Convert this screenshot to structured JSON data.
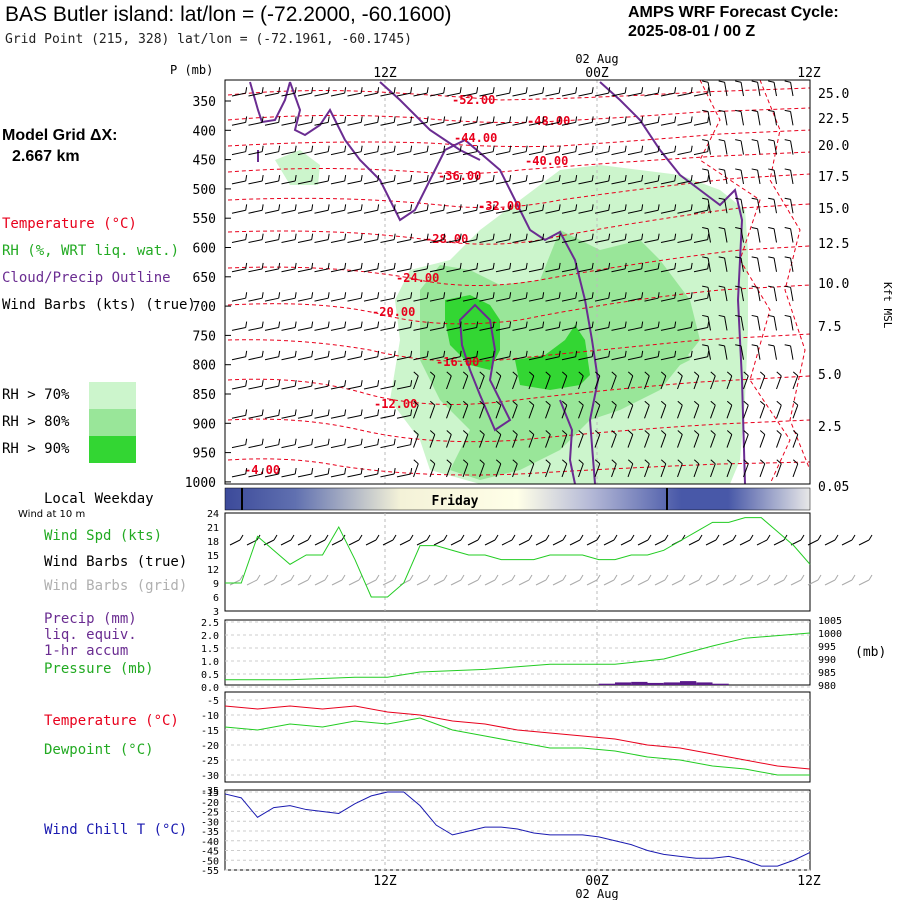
{
  "header": {
    "title": "BAS Butler island:  lat/lon = (-72.2000, -60.1600)",
    "grid_point": "Grid Point (215, 328) lat/lon = (-72.1961, -60.1745)",
    "cycle_label": "AMPS WRF Forecast Cycle:",
    "cycle_value": "2025-08-01 / 00  Z"
  },
  "sidebar": {
    "model_grid_label": "Model Grid ΔX:",
    "model_grid_value": "2.667 km",
    "legend_temperature": "Temperature (°C)",
    "legend_rh": "RH (%, WRT liq. wat.)",
    "legend_cloud": "Cloud/Precip Outline",
    "legend_wind": "Wind Barbs (kts) (true)",
    "rh_levels": [
      "RH > 70%",
      "RH > 80%",
      "RH > 90%"
    ],
    "local_weekday": "Local Weekday",
    "wind_at": "Wind at 10 m",
    "wind_spd": "Wind Spd (kts)",
    "wind_barbs_true": "Wind Barbs (true)",
    "wind_barbs_grid": "Wind Barbs (grid)",
    "precip_1": "Precip (mm)",
    "precip_2": "liq. equiv.",
    "precip_3": "1-hr accum",
    "pressure": "Pressure (mb)",
    "temperature": "Temperature (°C)",
    "dewpoint": "Dewpoint (°C)",
    "wind_chill": "Wind Chill T (°C)"
  },
  "colors": {
    "temperature": "#e8001c",
    "rh": "#22cc22",
    "cloud": "#6a2c91",
    "wind_chill": "#1a1ab0",
    "rh70": "#ccf5cc",
    "rh80": "#99e699",
    "rh90": "#33d633",
    "precip": "#5a1a8a"
  },
  "chart_data": [
    {
      "type": "heatmap",
      "name": "vertical-profile",
      "ylabel": "P (mb)",
      "y_ticks": [
        "350",
        "400",
        "450",
        "500",
        "550",
        "600",
        "650",
        "700",
        "750",
        "800",
        "850",
        "900",
        "950",
        "1000"
      ],
      "y2_label": "Kft MSL",
      "y2_ticks": [
        "25.0",
        "22.5",
        "20.0",
        "17.5",
        "15.0",
        "12.5",
        "10.0",
        "7.5",
        "5.0",
        "2.5",
        "0.05"
      ],
      "x_ticks_top": [
        "12Z",
        "00Z",
        "12Z"
      ],
      "date_label": "02 Aug",
      "temperature_labels": [
        "-52.00",
        "-48.00",
        "-44.00",
        "-40.00",
        "-36.00",
        "-32.00",
        "-28.00",
        "-24.00",
        "-20.00",
        "-16.00",
        "-12.00",
        "-4.00"
      ]
    },
    {
      "type": "line",
      "name": "wind-speed",
      "ylim": [
        3,
        24
      ],
      "y_ticks": [
        "24",
        "21",
        "18",
        "15",
        "12",
        "9",
        "6",
        "3"
      ],
      "x": [
        0,
        1,
        2,
        3,
        4,
        5,
        6,
        7,
        8,
        9,
        10,
        11,
        12,
        13,
        14,
        15,
        16,
        17,
        18,
        19,
        20,
        21,
        22,
        23,
        24,
        25,
        26,
        27,
        28,
        29,
        30,
        31,
        32,
        33,
        34,
        35,
        36
      ],
      "values": [
        9,
        9,
        19,
        16,
        13,
        15,
        15,
        21,
        14,
        6,
        6,
        9,
        17,
        17,
        16,
        15,
        15,
        14,
        14,
        14,
        15,
        15,
        15,
        14,
        14,
        15,
        15,
        16,
        18,
        20,
        22,
        22,
        23,
        23,
        20,
        17,
        13
      ]
    },
    {
      "type": "bar",
      "name": "precip-pressure",
      "ylim": [
        0,
        2.5
      ],
      "y_ticks": [
        "2.5",
        "2.0",
        "1.5",
        "1.0",
        "0.5",
        "0.0"
      ],
      "y2_ticks": [
        "1005",
        "1000",
        "995",
        "990",
        "985",
        "980"
      ],
      "y2_label": "(mb)",
      "y2lim": [
        980,
        1005
      ],
      "precip_x": [
        23,
        24,
        25,
        26,
        27,
        28,
        29,
        30
      ],
      "precip_values": [
        0.05,
        0.1,
        0.12,
        0.08,
        0.1,
        0.15,
        0.1,
        0.05
      ],
      "pressure_x": [
        0,
        4,
        8,
        10,
        12,
        16,
        18,
        20,
        24,
        27,
        30,
        32,
        34,
        36
      ],
      "pressure_values": [
        982,
        982,
        983,
        983,
        985,
        986,
        987,
        988,
        988,
        990,
        995,
        998,
        999,
        1000
      ]
    },
    {
      "type": "line",
      "name": "temperature-dewpoint",
      "ylim": [
        -35,
        -5
      ],
      "y_ticks": [
        "-5",
        "-10",
        "-15",
        "-20",
        "-25",
        "-30",
        "-35"
      ],
      "x": [
        0,
        2,
        4,
        6,
        8,
        10,
        12,
        14,
        16,
        18,
        20,
        22,
        24,
        26,
        28,
        30,
        32,
        34,
        36
      ],
      "series": [
        {
          "name": "Temperature (°C)",
          "values": [
            -7,
            -8,
            -7,
            -8,
            -7,
            -9,
            -10,
            -12,
            -13,
            -15,
            -16,
            -17,
            -18,
            -20,
            -21,
            -23,
            -25,
            -27,
            -28
          ]
        },
        {
          "name": "Dewpoint (°C)",
          "values": [
            -14,
            -15,
            -13,
            -14,
            -12,
            -13,
            -11,
            -15,
            -17,
            -19,
            -21,
            -21,
            -22,
            -24,
            -25,
            -27,
            -28,
            -30,
            -30
          ]
        }
      ]
    },
    {
      "type": "line",
      "name": "wind-chill",
      "ylim": [
        -55,
        -15
      ],
      "y_ticks": [
        "-15",
        "-20",
        "-25",
        "-30",
        "-35",
        "-40",
        "-45",
        "-50",
        "-55"
      ],
      "x": [
        0,
        1,
        2,
        3,
        4,
        5,
        6,
        7,
        8,
        9,
        10,
        11,
        12,
        13,
        14,
        15,
        16,
        17,
        18,
        19,
        20,
        21,
        22,
        23,
        24,
        25,
        26,
        27,
        28,
        29,
        30,
        31,
        32,
        33,
        34,
        35,
        36
      ],
      "values": [
        -16,
        -18,
        -28,
        -23,
        -22,
        -24,
        -25,
        -26,
        -21,
        -17,
        -15,
        -15,
        -22,
        -32,
        -37,
        -35,
        -33,
        -33,
        -34,
        -36,
        -37,
        -37,
        -37,
        -38,
        -40,
        -42,
        -45,
        -47,
        -48,
        -49,
        -49,
        -48,
        -50,
        -53,
        -53,
        -50,
        -46
      ],
      "x_ticks_bottom": [
        "12Z",
        "00Z",
        "12Z"
      ],
      "date_label": "02 Aug"
    }
  ],
  "weekday_bar": {
    "label": "Friday"
  }
}
